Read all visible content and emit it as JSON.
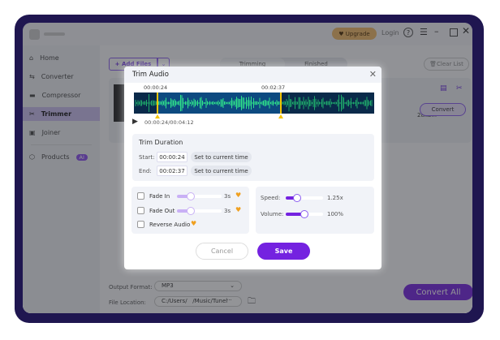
{
  "titlebar": {
    "upgrade": "Upgrade",
    "login": "Login"
  },
  "sidebar": {
    "items": [
      {
        "label": "Home"
      },
      {
        "label": "Converter"
      },
      {
        "label": "Compressor"
      },
      {
        "label": "Trimmer"
      },
      {
        "label": "Joiner"
      },
      {
        "label": "Products"
      }
    ],
    "badge": "AI",
    "active": "Trimmer"
  },
  "toolbar": {
    "add_files": "+ Add Files",
    "tabs": [
      "Trimming",
      "Finished"
    ],
    "clear_list": "Clear List"
  },
  "file_row": {
    "format": "28kb...",
    "convert": "Convert"
  },
  "bottom": {
    "output_format_label": "Output Format:",
    "output_format": "MP3",
    "file_location_label": "File Location:",
    "file_location": "C:/Users/   /Music/Tunel",
    "more": "···",
    "convert_all": "Convert All"
  },
  "dialog": {
    "title": "Trim Audio",
    "marker_start": "00:00:24",
    "marker_end": "00:02:37",
    "playback": "00:00:24/00:04:12",
    "trim_duration": {
      "title": "Trim Duration",
      "start_label": "Start:",
      "start": "00:00:24",
      "end_label": "End:",
      "end": "00:02:37",
      "set_current": "Set to current time"
    },
    "effects": {
      "fade_in": "Fade In",
      "fade_in_value": "3s",
      "fade_out": "Fade Out",
      "fade_out_value": "3s",
      "reverse": "Reverse Audio",
      "fade_in_level": 0.3,
      "fade_out_level": 0.3
    },
    "adjust": {
      "speed_label": "Speed:",
      "speed": "1.25x",
      "speed_level": 0.3,
      "volume_label": "Volume:",
      "volume": "100%",
      "volume_level": 0.5
    },
    "cancel": "Cancel",
    "save": "Save"
  },
  "colors": {
    "accent": "#7422e0",
    "frame": "#1f1650",
    "wave": "#2fe08a",
    "marker": "#f5c400"
  }
}
